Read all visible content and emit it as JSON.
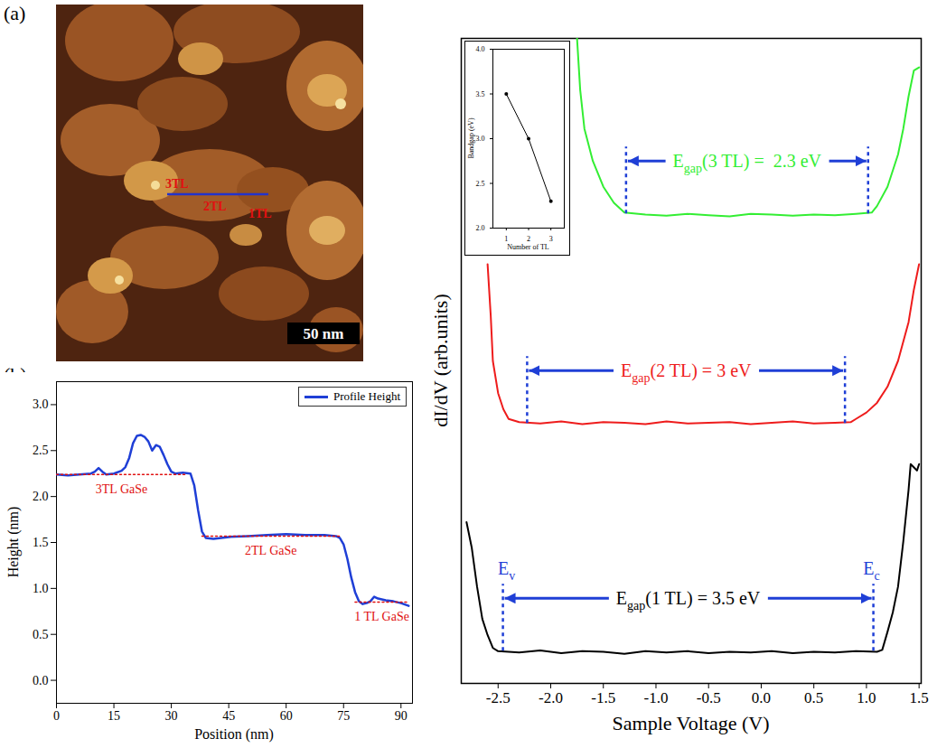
{
  "chart_data": [
    {
      "panel": "(a)",
      "type": "image",
      "annotations": [
        "3TL",
        "2TL",
        "1TL"
      ],
      "scale_bar": "50 nm"
    },
    {
      "panel": "(b)",
      "type": "line",
      "x_label": "Position (nm)",
      "y_label": "Height (nm)",
      "xlim": [
        0,
        93
      ],
      "xticks": [
        0,
        15,
        30,
        45,
        60,
        75,
        90
      ],
      "ylim": [
        -0.25,
        3.25
      ],
      "yticks": [
        {
          "value": 0,
          "label": "0.0"
        },
        0.5,
        {
          "value": 1,
          "label": "1.0"
        },
        1.5,
        {
          "value": 2,
          "label": "2.0"
        },
        2.5,
        {
          "value": 3,
          "label": "3.0"
        }
      ],
      "legend": "upper right",
      "series": [
        {
          "name": "Profile Height",
          "color": "#1f3fd6",
          "x": [
            0,
            3,
            6,
            9,
            10,
            11,
            12,
            13,
            15,
            17,
            18,
            19,
            20,
            21,
            22,
            23,
            24,
            25,
            26,
            27,
            28,
            29,
            30,
            31,
            33,
            35,
            36,
            37,
            38,
            39,
            41,
            45,
            50,
            55,
            60,
            65,
            70,
            73,
            74,
            75,
            76,
            77,
            78,
            79,
            80,
            81,
            82,
            83,
            84,
            86,
            88,
            90,
            92
          ],
          "values": [
            2.24,
            2.23,
            2.24,
            2.25,
            2.27,
            2.31,
            2.27,
            2.24,
            2.25,
            2.28,
            2.32,
            2.42,
            2.58,
            2.66,
            2.67,
            2.65,
            2.6,
            2.5,
            2.56,
            2.54,
            2.45,
            2.35,
            2.27,
            2.25,
            2.26,
            2.25,
            2.12,
            1.85,
            1.62,
            1.55,
            1.54,
            1.56,
            1.57,
            1.58,
            1.59,
            1.58,
            1.58,
            1.57,
            1.55,
            1.48,
            1.32,
            1.12,
            0.96,
            0.86,
            0.83,
            0.84,
            0.86,
            0.91,
            0.89,
            0.87,
            0.86,
            0.84,
            0.81
          ]
        },
        {
          "label": "3TL GaSe",
          "color": "#e01010",
          "line_style": "dotted",
          "x": [
            0,
            34
          ],
          "values": [
            2.24,
            2.24
          ]
        },
        {
          "label": "2TL GaSe",
          "color": "#e01010",
          "line_style": "dotted",
          "x": [
            38,
            74
          ],
          "values": [
            1.57,
            1.57
          ]
        },
        {
          "label": "1 TL GaSe",
          "color": "#e01010",
          "line_style": "dotted",
          "x": [
            78,
            92
          ],
          "values": [
            0.85,
            0.85
          ]
        }
      ]
    },
    {
      "panel": "(c)",
      "type": "line",
      "x_label": "Sample Voltage (V)",
      "y_label": "dI/dV (arb.units)",
      "xlim": [
        -2.85,
        1.52
      ],
      "xticks": [
        -2.5,
        {
          "value": -2,
          "label": "-2.0"
        },
        -1.5,
        {
          "value": -1,
          "label": "-1.0"
        },
        -0.5,
        {
          "value": 0,
          "label": "0.0"
        },
        0.5,
        {
          "value": 1,
          "label": "1.0"
        },
        1.5
      ],
      "ylim": [
        0,
        10
      ],
      "tick_labels": "x",
      "series": [
        {
          "color": "#000000",
          "x": [
            -2.8,
            -2.75,
            -2.7,
            -2.65,
            -2.6,
            -2.55,
            -2.5,
            -2.3,
            -2.1,
            -1.9,
            -1.7,
            -1.5,
            -1.3,
            -1.1,
            -0.9,
            -0.7,
            -0.5,
            -0.3,
            -0.1,
            0.1,
            0.3,
            0.5,
            0.7,
            0.9,
            1.1,
            1.15,
            1.2,
            1.25,
            1.3,
            1.35,
            1.4,
            1.42,
            1.45,
            1.48,
            1.5
          ],
          "values": [
            2.5,
            2.1,
            1.5,
            1.0,
            0.75,
            0.55,
            0.5,
            0.48,
            0.51,
            0.47,
            0.5,
            0.49,
            0.46,
            0.5,
            0.48,
            0.5,
            0.47,
            0.49,
            0.48,
            0.5,
            0.47,
            0.49,
            0.48,
            0.5,
            0.49,
            0.52,
            0.8,
            1.1,
            1.5,
            2.2,
            3.0,
            3.4,
            3.35,
            3.3,
            3.4
          ],
          "annotation": {
            "text": "Egap(1 TL) = 3.5 eV",
            "ev": -2.45,
            "ec": 1.07,
            "ev_label": "Ev",
            "ec_label": "Ec"
          }
        },
        {
          "color": "#ee1c1c",
          "x": [
            -2.6,
            -2.57,
            -2.55,
            -2.5,
            -2.45,
            -2.4,
            -2.3,
            -2.1,
            -1.9,
            -1.7,
            -1.5,
            -1.3,
            -1.1,
            -0.9,
            -0.7,
            -0.5,
            -0.3,
            -0.1,
            0.1,
            0.3,
            0.5,
            0.7,
            0.85,
            0.9,
            1.0,
            1.1,
            1.2,
            1.3,
            1.4,
            1.45,
            1.5
          ],
          "values": [
            6.5,
            5.7,
            5.0,
            4.5,
            4.25,
            4.1,
            4.05,
            4.03,
            4.06,
            4.02,
            4.05,
            4.04,
            4.02,
            4.06,
            4.03,
            4.04,
            4.05,
            4.02,
            4.04,
            4.06,
            4.03,
            4.04,
            4.05,
            4.1,
            4.2,
            4.35,
            4.6,
            5.0,
            5.6,
            6.1,
            6.5
          ],
          "annotation": {
            "text": "Egap(2 TL) = 3 eV",
            "ev": -2.22,
            "ec": 0.8
          }
        },
        {
          "color": "#33ee33",
          "x": [
            -1.75,
            -1.72,
            -1.68,
            -1.6,
            -1.5,
            -1.4,
            -1.3,
            -1.1,
            -0.9,
            -0.7,
            -0.5,
            -0.3,
            -0.1,
            0.1,
            0.3,
            0.5,
            0.7,
            0.9,
            1.05,
            1.1,
            1.2,
            1.3,
            1.35,
            1.4,
            1.45,
            1.5
          ],
          "values": [
            10,
            9.2,
            8.6,
            8.1,
            7.7,
            7.45,
            7.3,
            7.27,
            7.25,
            7.28,
            7.26,
            7.24,
            7.28,
            7.27,
            7.25,
            7.27,
            7.26,
            7.28,
            7.3,
            7.4,
            7.7,
            8.2,
            8.6,
            9.1,
            9.5,
            9.55
          ],
          "annotation": {
            "text": "Egap(3 TL) =  2.3 eV",
            "ev": -1.28,
            "ec": 1.02
          }
        }
      ],
      "inset": {
        "type": "line",
        "marker": "circle",
        "color": "#000000",
        "x_label": "Number of TL",
        "y_label": "Bandgap (eV)",
        "xlim": [
          0.4,
          3.6
        ],
        "xticks": [
          1,
          2,
          3
        ],
        "ylim": [
          2,
          4
        ],
        "yticks": [
          {
            "value": 2,
            "label": "2.0"
          },
          2.5,
          {
            "value": 3,
            "label": "3.0"
          },
          3.5,
          {
            "value": 4,
            "label": "4.0"
          }
        ],
        "x": [
          1,
          2,
          3
        ],
        "values": [
          3.5,
          3,
          2.3
        ]
      }
    }
  ]
}
